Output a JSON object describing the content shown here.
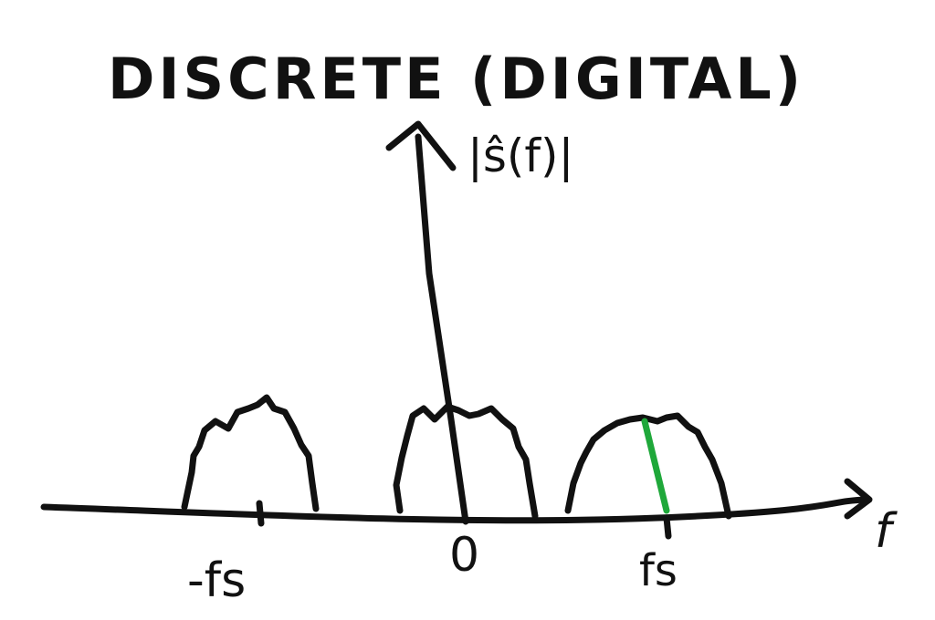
{
  "title": "DISCRETE (DIGITAL)",
  "y_axis_label": "|ŝ(f)|",
  "x_axis_label": "f",
  "ticks": [
    "-fs",
    "0",
    "fs"
  ],
  "colors": {
    "ink": "#111111",
    "highlight": "#1fa83a",
    "background": "#ffffff"
  }
}
